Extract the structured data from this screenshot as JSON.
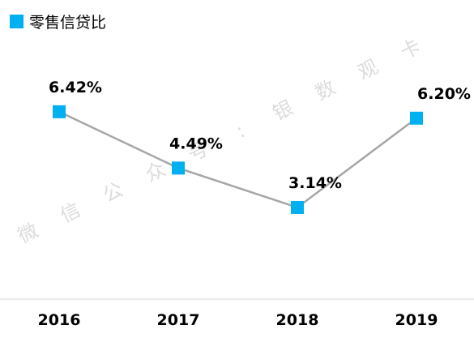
{
  "chart_data": {
    "type": "line",
    "categories": [
      "2016",
      "2017",
      "2018",
      "2019"
    ],
    "series": [
      {
        "name": "零售信贷比",
        "values": [
          6.42,
          4.49,
          3.14,
          6.2
        ],
        "labels": [
          "6.42%",
          "4.49%",
          "3.14%",
          "6.20%"
        ]
      }
    ],
    "title": "",
    "xlabel": "",
    "ylabel": "",
    "ylim": [
      0,
      10
    ],
    "grid": false,
    "legend": "top-left"
  },
  "colors": {
    "marker": "#00b0f0",
    "line": "#a6a6a6",
    "axis": "#d9d9d9",
    "watermark": "#dcdcdc"
  },
  "watermark": {
    "chars": [
      "微",
      "信",
      "公",
      "众",
      "号",
      ":",
      "银",
      "数",
      "观",
      "卡"
    ]
  }
}
